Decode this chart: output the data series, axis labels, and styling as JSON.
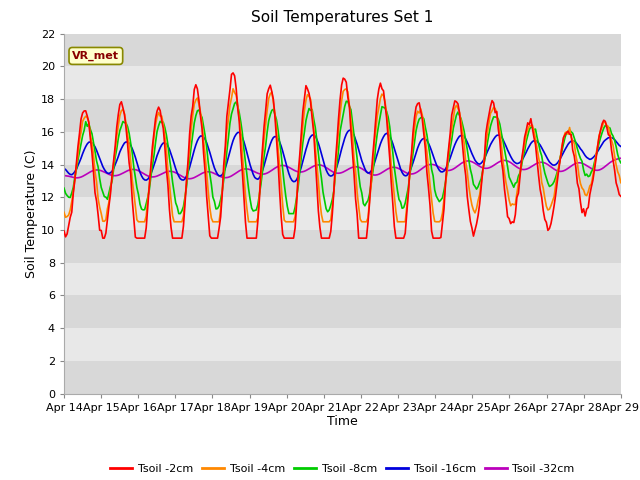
{
  "title": "Soil Temperatures Set 1",
  "xlabel": "Time",
  "ylabel": "Soil Temperature (C)",
  "ylim": [
    0,
    22
  ],
  "yticks": [
    0,
    2,
    4,
    6,
    8,
    10,
    12,
    14,
    16,
    18,
    20,
    22
  ],
  "date_labels": [
    "Apr 14",
    "Apr 15",
    "Apr 16",
    "Apr 17",
    "Apr 18",
    "Apr 19",
    "Apr 20",
    "Apr 21",
    "Apr 22",
    "Apr 23",
    "Apr 24",
    "Apr 25",
    "Apr 26",
    "Apr 27",
    "Apr 28",
    "Apr 29"
  ],
  "series_colors": [
    "#ff0000",
    "#ff8800",
    "#00cc00",
    "#0000dd",
    "#bb00bb"
  ],
  "series_labels": [
    "Tsoil -2cm",
    "Tsoil -4cm",
    "Tsoil -8cm",
    "Tsoil -16cm",
    "Tsoil -32cm"
  ],
  "annotation_text": "VR_met",
  "stripe_colors": [
    "#d8d8d8",
    "#e8e8e8"
  ],
  "title_fontsize": 11,
  "axis_label_fontsize": 9,
  "tick_fontsize": 8,
  "line_width": 1.2
}
